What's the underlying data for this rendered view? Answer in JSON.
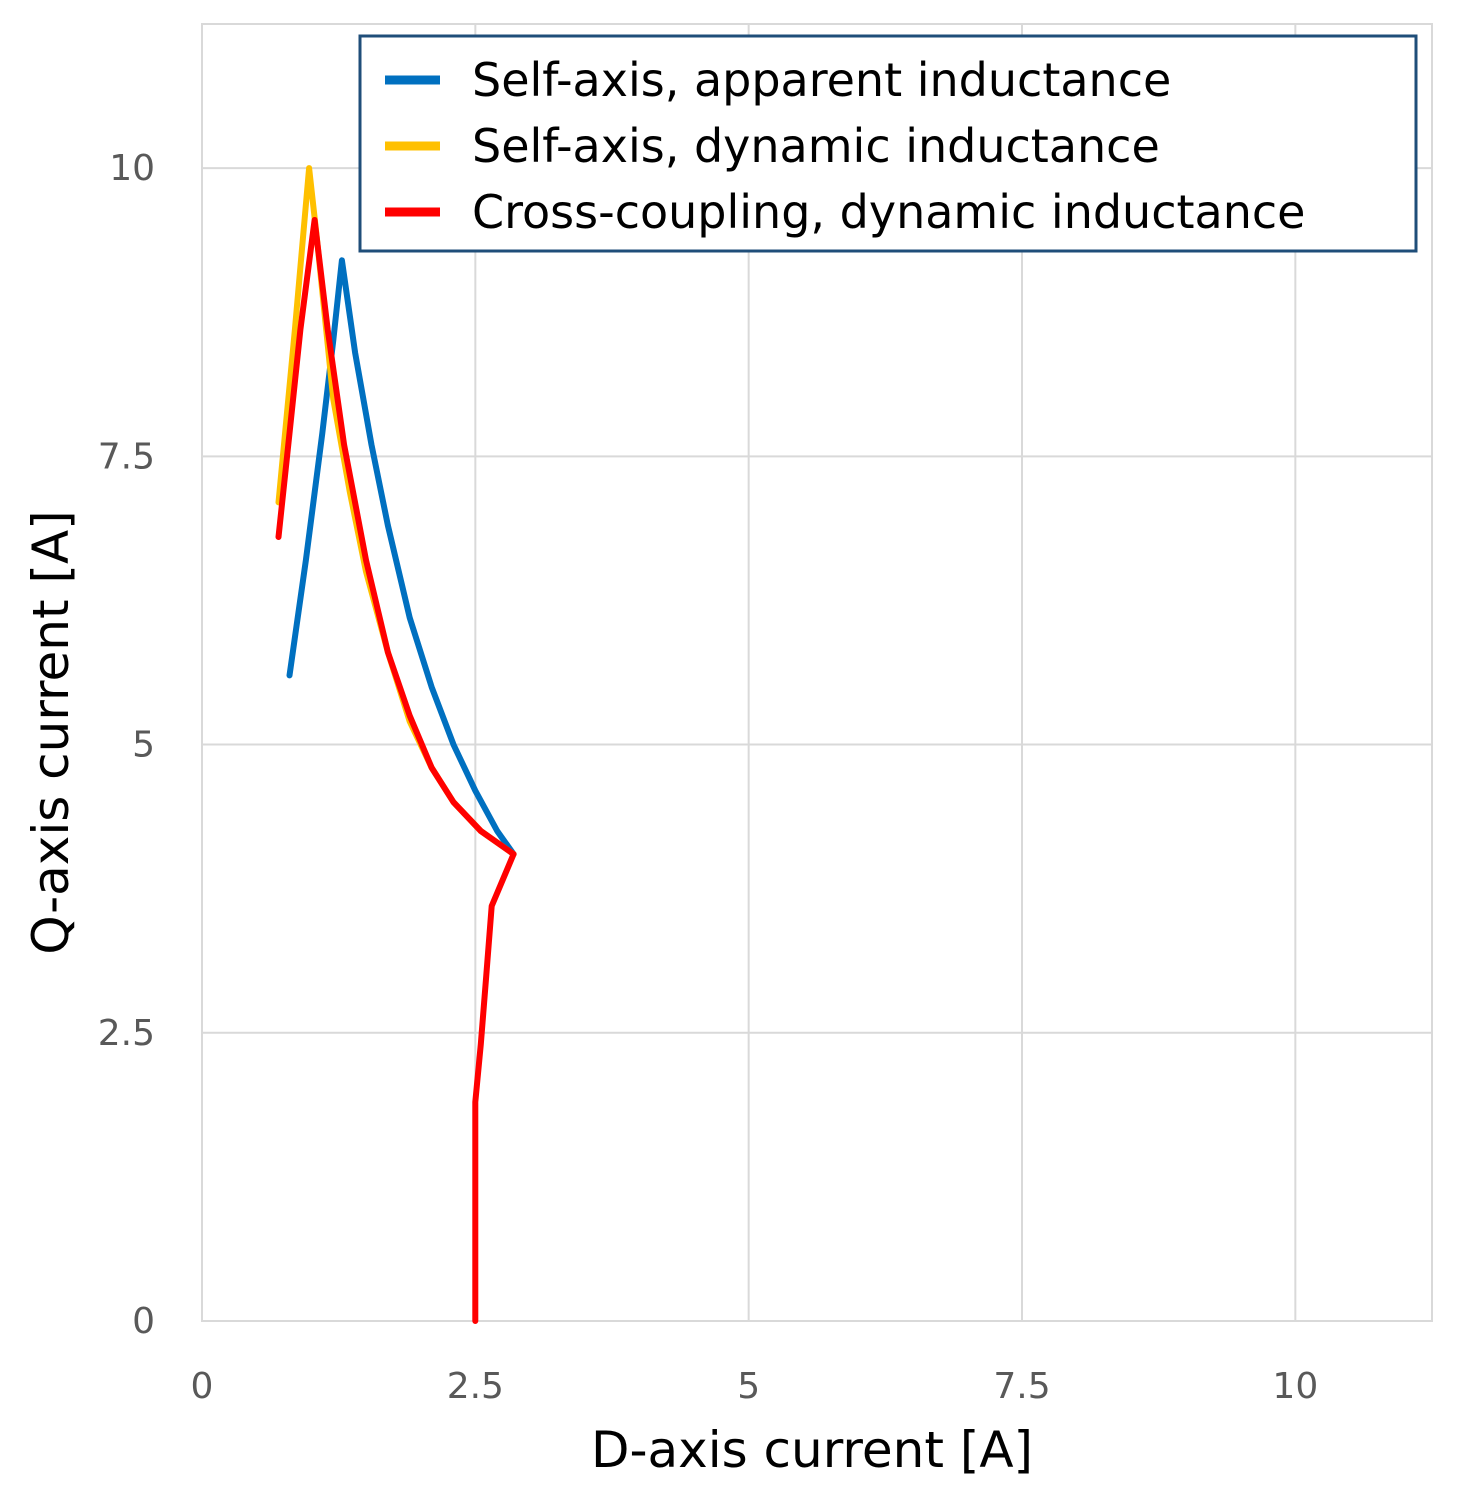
{
  "chart_data": {
    "type": "line",
    "xlabel": "D-axis current [A]",
    "ylabel": "Q-axis current [A]",
    "xlim": [
      0,
      11.25
    ],
    "ylim": [
      0,
      11.25
    ],
    "x_ticks": [
      {
        "value": 0,
        "label": "0"
      },
      {
        "value": 2.5,
        "label": "2.5"
      },
      {
        "value": 5,
        "label": "5"
      },
      {
        "value": 7.5,
        "label": "7.5"
      },
      {
        "value": 10,
        "label": "10"
      }
    ],
    "y_ticks": [
      {
        "value": 0,
        "label": "0"
      },
      {
        "value": 2.5,
        "label": "2.5"
      },
      {
        "value": 5,
        "label": "5"
      },
      {
        "value": 7.5,
        "label": "7.5"
      },
      {
        "value": 10,
        "label": "10"
      }
    ],
    "grid": true,
    "legend_position": "top-right",
    "series": [
      {
        "name": "Self-axis, apparent inductance",
        "color": "#0070C0",
        "points": [
          [
            0.8,
            5.6
          ],
          [
            0.95,
            6.6
          ],
          [
            1.1,
            7.7
          ],
          [
            1.2,
            8.5
          ],
          [
            1.28,
            9.2
          ],
          [
            1.4,
            8.4
          ],
          [
            1.55,
            7.6
          ],
          [
            1.7,
            6.9
          ],
          [
            1.9,
            6.1
          ],
          [
            2.1,
            5.5
          ],
          [
            2.3,
            5.0
          ],
          [
            2.5,
            4.6
          ],
          [
            2.7,
            4.25
          ],
          [
            2.85,
            4.05
          ]
        ]
      },
      {
        "name": "Self-axis, dynamic inductance",
        "color": "#FFC000",
        "points": [
          [
            0.7,
            7.1
          ],
          [
            0.85,
            8.6
          ],
          [
            0.98,
            10.0
          ],
          [
            1.05,
            9.4
          ],
          [
            1.2,
            8.0
          ],
          [
            1.35,
            7.2
          ],
          [
            1.5,
            6.5
          ],
          [
            1.7,
            5.8
          ],
          [
            1.9,
            5.2
          ],
          [
            2.1,
            4.8
          ],
          [
            2.3,
            4.5
          ],
          [
            2.55,
            4.25
          ],
          [
            2.85,
            4.05
          ]
        ]
      },
      {
        "name": "Cross-coupling, dynamic inductance",
        "color": "#FF0000",
        "points": [
          [
            0.7,
            6.8
          ],
          [
            0.8,
            7.7
          ],
          [
            0.9,
            8.6
          ],
          [
            1.03,
            9.55
          ],
          [
            1.15,
            8.6
          ],
          [
            1.3,
            7.6
          ],
          [
            1.5,
            6.6
          ],
          [
            1.7,
            5.8
          ],
          [
            1.9,
            5.25
          ],
          [
            2.1,
            4.8
          ],
          [
            2.3,
            4.5
          ],
          [
            2.55,
            4.25
          ],
          [
            2.85,
            4.05
          ],
          [
            2.65,
            3.6
          ],
          [
            2.6,
            3.0
          ],
          [
            2.55,
            2.4
          ],
          [
            2.5,
            1.9
          ],
          [
            2.5,
            1.0
          ],
          [
            2.5,
            0.0
          ]
        ]
      }
    ]
  }
}
